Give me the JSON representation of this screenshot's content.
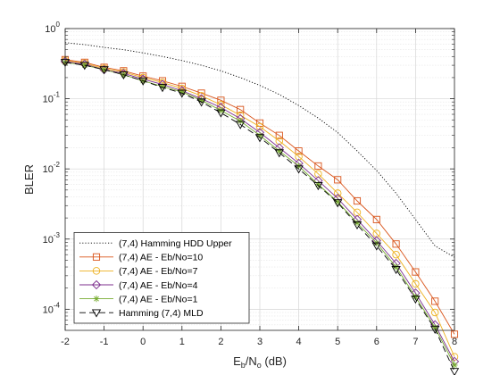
{
  "chart_data": {
    "type": "line",
    "title": "",
    "xlabel": "E_b/N_o (dB)",
    "xlabel_parts": {
      "main": "E",
      "sub1": "b",
      "mid": "/N",
      "sub2": "o",
      "unit": " (dB)"
    },
    "ylabel": "BLER",
    "y_scale": "log",
    "xlim": [
      -2,
      8
    ],
    "ylim": [
      5e-05,
      1
    ],
    "grid": true,
    "legend_position": "bottom-left",
    "x_ticks": [
      -2,
      -1,
      0,
      1,
      2,
      3,
      4,
      5,
      6,
      7,
      8
    ],
    "y_tick_labels": [
      {
        "base": "10",
        "exp": "0",
        "value": 1
      },
      {
        "base": "10",
        "exp": "-1",
        "value": 0.1
      },
      {
        "base": "10",
        "exp": "-2",
        "value": 0.01
      },
      {
        "base": "10",
        "exp": "-3",
        "value": 0.001
      },
      {
        "base": "10",
        "exp": "-4",
        "value": 0.0001
      }
    ],
    "x": [
      -2,
      -1.5,
      -1,
      -0.5,
      0,
      0.5,
      1,
      1.5,
      2,
      2.5,
      3,
      3.5,
      4,
      4.5,
      5,
      5.5,
      6,
      6.5,
      7,
      7.5,
      8
    ],
    "series": [
      {
        "name": "(7,4) Hamming HDD Upper",
        "color": "#000000",
        "line_style": "dotted",
        "marker": "none",
        "values": [
          0.63,
          0.59,
          0.54,
          0.5,
          0.45,
          0.4,
          0.35,
          0.3,
          0.25,
          0.2,
          0.155,
          0.115,
          0.08,
          0.053,
          0.033,
          0.018,
          0.0095,
          0.0045,
          0.0019,
          0.0008,
          0.00055
        ]
      },
      {
        "name": "(7,4) AE - Eb/No=10",
        "color": "#d95319",
        "line_style": "solid",
        "marker": "square",
        "values": [
          0.36,
          0.33,
          0.28,
          0.25,
          0.21,
          0.18,
          0.15,
          0.12,
          0.095,
          0.07,
          0.045,
          0.03,
          0.018,
          0.011,
          0.007,
          0.0035,
          0.0019,
          0.00085,
          0.00034,
          0.00013,
          4.4e-05
        ]
      },
      {
        "name": "(7,4) AE - Eb/No=7",
        "color": "#edb120",
        "line_style": "solid",
        "marker": "circle",
        "values": [
          0.35,
          0.32,
          0.27,
          0.24,
          0.2,
          0.17,
          0.14,
          0.11,
          0.082,
          0.058,
          0.04,
          0.025,
          0.015,
          0.0085,
          0.0045,
          0.0024,
          0.0012,
          0.0006,
          0.00023,
          9e-05,
          2.1e-05
        ]
      },
      {
        "name": "(7,4) AE - Eb/No=4",
        "color": "#7e2f8e",
        "line_style": "solid",
        "marker": "diamond",
        "values": [
          0.34,
          0.31,
          0.26,
          0.23,
          0.19,
          0.16,
          0.13,
          0.1,
          0.075,
          0.052,
          0.033,
          0.02,
          0.012,
          0.0068,
          0.0038,
          0.0019,
          0.00095,
          0.00045,
          0.00017,
          6e-05,
          1.8e-05
        ]
      },
      {
        "name": "(7,4) AE - Eb/No=1",
        "color": "#77ac30",
        "line_style": "solid",
        "marker": "asterisk",
        "values": [
          0.33,
          0.3,
          0.26,
          0.22,
          0.18,
          0.15,
          0.125,
          0.095,
          0.068,
          0.048,
          0.03,
          0.018,
          0.011,
          0.006,
          0.0034,
          0.0017,
          0.00088,
          0.0004,
          0.00015,
          5.5e-05,
          1.6e-05
        ]
      },
      {
        "name": "Hamming (7,4) MLD",
        "color": "#000000",
        "line_style": "dashed",
        "marker": "triangle-down",
        "values": [
          0.33,
          0.3,
          0.26,
          0.22,
          0.18,
          0.145,
          0.12,
          0.09,
          0.063,
          0.043,
          0.028,
          0.017,
          0.01,
          0.0058,
          0.0033,
          0.0016,
          0.0008,
          0.00037,
          0.00014,
          5.2e-05,
          1.3e-05
        ]
      }
    ]
  }
}
